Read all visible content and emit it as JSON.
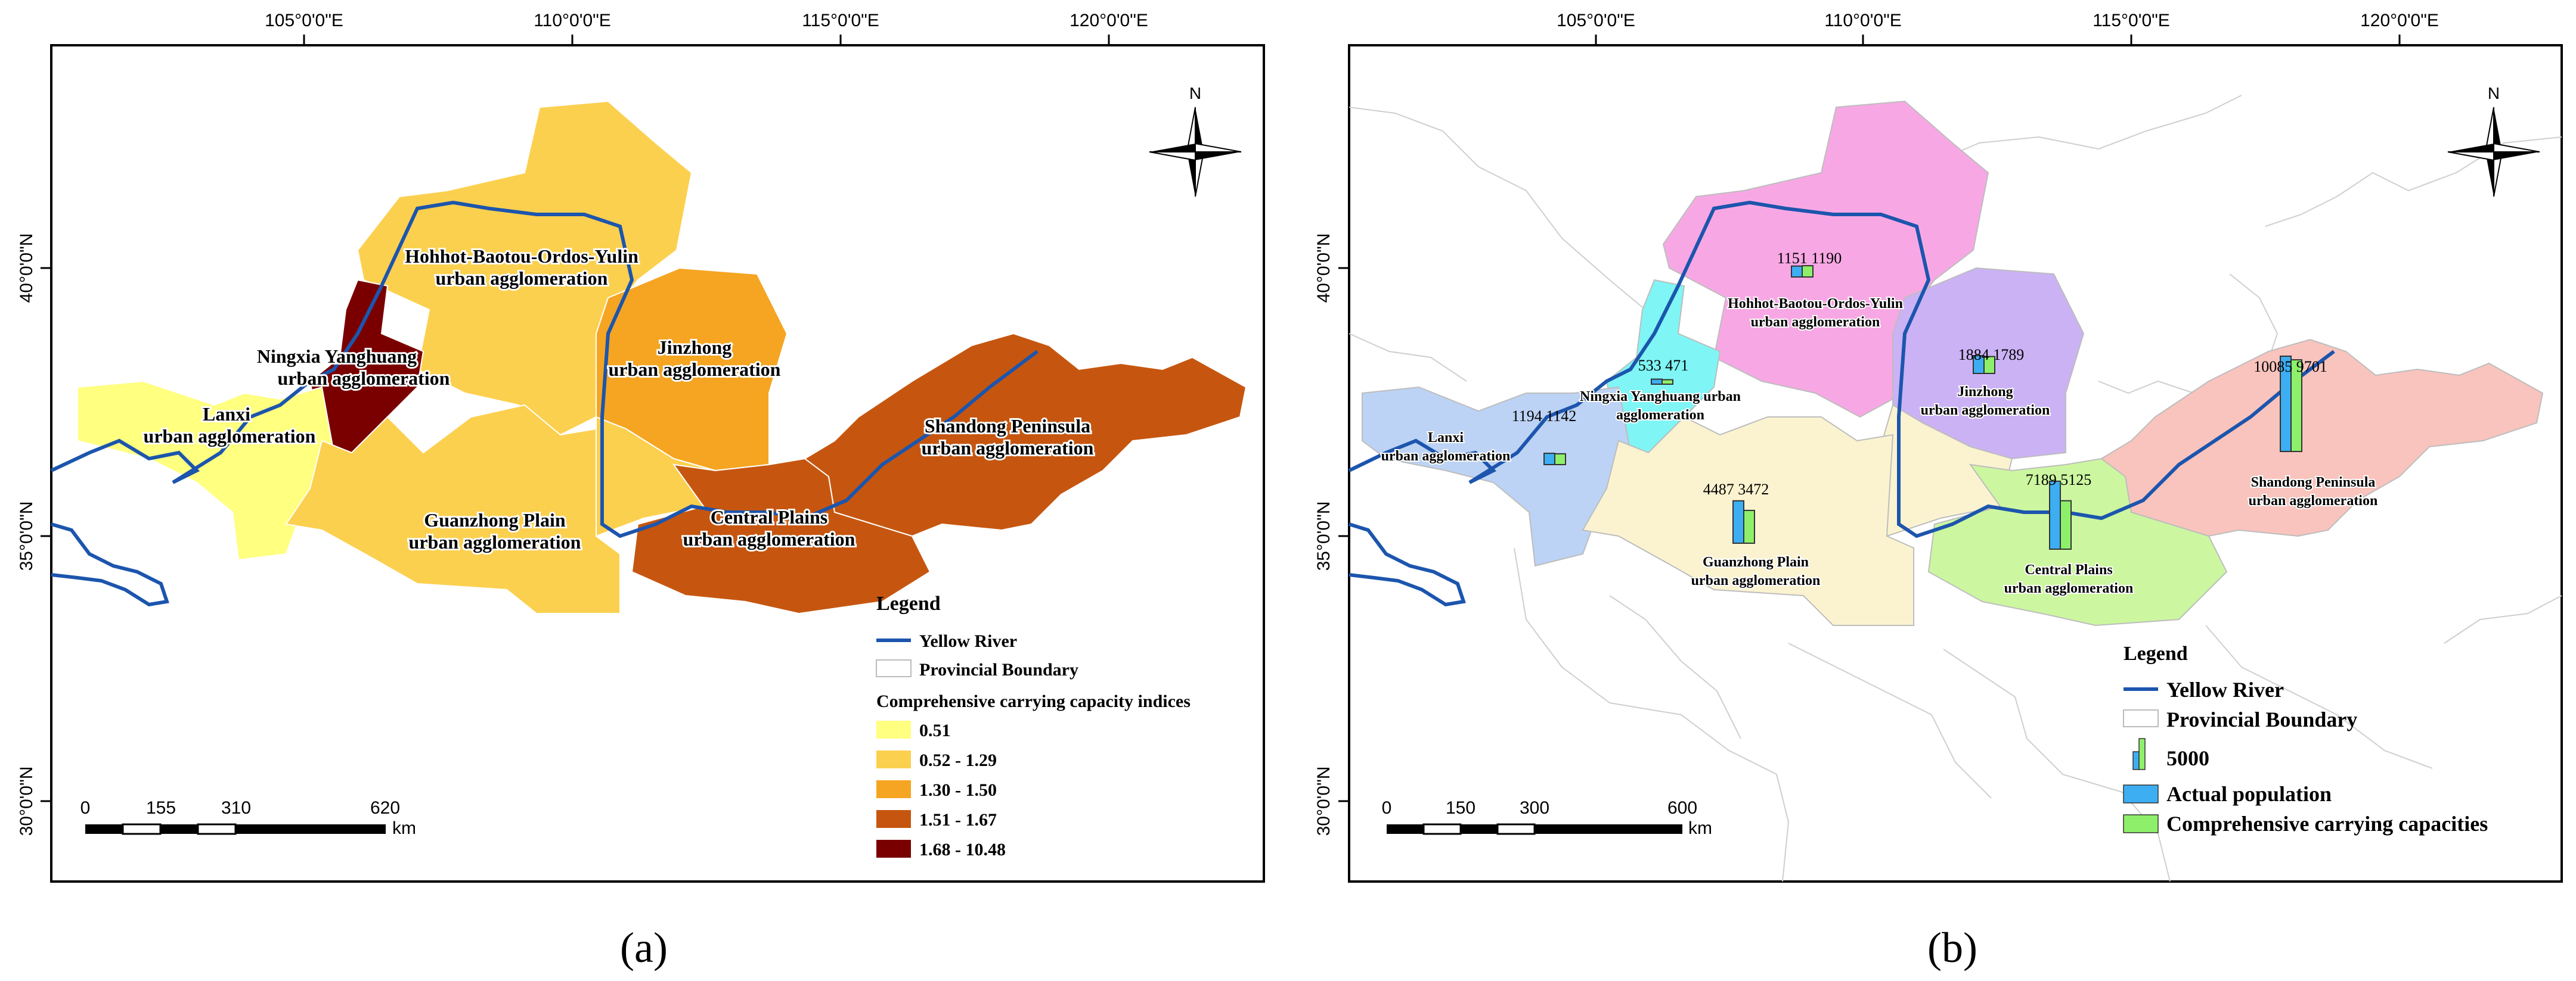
{
  "panel_a": {
    "caption": "(a)",
    "x_ticks": [
      "105°0'0\"E",
      "110°0'0\"E",
      "115°0'0\"E",
      "120°0'0\"E"
    ],
    "y_ticks": [
      "40°0'0\"N",
      "35°0'0\"N",
      "30°0'0\"N"
    ],
    "north": "N",
    "regions": [
      {
        "line1": "Hohhot-Baotou-Ordos-Yulin",
        "line2": "urban agglomeration",
        "class": "0.52 - 1.29"
      },
      {
        "line1": "Ningxia Yanghuang",
        "line2": "urban agglomeration",
        "class": "1.68 - 10.48"
      },
      {
        "line1": "Jinzhong",
        "line2": "urban agglomeration",
        "class": "1.30 - 1.50"
      },
      {
        "line1": "Lanxi",
        "line2": "urban agglomeration",
        "class": "0.51"
      },
      {
        "line1": "Shandong Peninsula",
        "line2": "urban agglomeration",
        "class": "1.51 - 1.67"
      },
      {
        "line1": "Guanzhong Plain",
        "line2": "urban agglomeration",
        "class": "0.52 - 1.29"
      },
      {
        "line1": "Central Plains",
        "line2": "urban agglomeration",
        "class": "1.51 - 1.67"
      }
    ],
    "legend": {
      "title": "Legend",
      "river": "Yellow River",
      "boundary": "Provincial Boundary",
      "indices_title": "Comprehensive carrying capacity indices",
      "classes": [
        {
          "label": "0.51",
          "color": "#ffff80"
        },
        {
          "label": "0.52 - 1.29",
          "color": "#fcd04f"
        },
        {
          "label": "1.30 - 1.50",
          "color": "#f5a522"
        },
        {
          "label": "1.51 - 1.67",
          "color": "#c6560f"
        },
        {
          "label": "1.68 - 10.48",
          "color": "#7a0000"
        }
      ]
    },
    "scale": {
      "labels": [
        "0",
        "155",
        "310",
        "620"
      ],
      "unit": "km"
    }
  },
  "panel_b": {
    "caption": "(b)",
    "x_ticks": [
      "105°0'0\"E",
      "110°0'0\"E",
      "115°0'0\"E",
      "120°0'0\"E"
    ],
    "y_ticks": [
      "40°0'0\"N",
      "35°0'0\"N",
      "30°0'0\"N"
    ],
    "north": "N",
    "regions": [
      {
        "line1": "Hohhot-Baotou-Ordos-Yulin",
        "line2": "urban agglomeration",
        "population": 1151,
        "capacity": 1190,
        "color": "#f7a8e4"
      },
      {
        "line1": "Ningxia Yanghuang urban",
        "line2": "agglomeration",
        "population": 533,
        "capacity": 471,
        "color": "#7ff5f5"
      },
      {
        "line1": "Jinzhong",
        "line2": "urban agglomeration",
        "population": 1884,
        "capacity": 1789,
        "color": "#cbb2f5"
      },
      {
        "line1": "Lanxi",
        "line2": "urban agglomeration",
        "population": 1194,
        "capacity": 1142,
        "color": "#bcd3f5"
      },
      {
        "line1": "Shandong Peninsula",
        "line2": "urban agglomeration",
        "population": 10085,
        "capacity": 9701,
        "color": "#f9c4bd"
      },
      {
        "line1": "Guanzhong Plain",
        "line2": "urban agglomeration",
        "population": 4487,
        "capacity": 3472,
        "color": "#fbf3d0"
      },
      {
        "line1": "Central Plains",
        "line2": "urban agglomeration",
        "population": 7189,
        "capacity": 5125,
        "color": "#ccf7a0"
      }
    ],
    "legend": {
      "title": "Legend",
      "river": "Yellow River",
      "boundary": "Provincial Boundary",
      "size_ref": "5000",
      "population": "Actual population",
      "capacity": "Comprehensive carrying capacities",
      "population_color": "#3daef2",
      "capacity_color": "#8ef06a"
    },
    "scale": {
      "labels": [
        "0",
        "150",
        "300",
        "600"
      ],
      "unit": "km"
    }
  }
}
